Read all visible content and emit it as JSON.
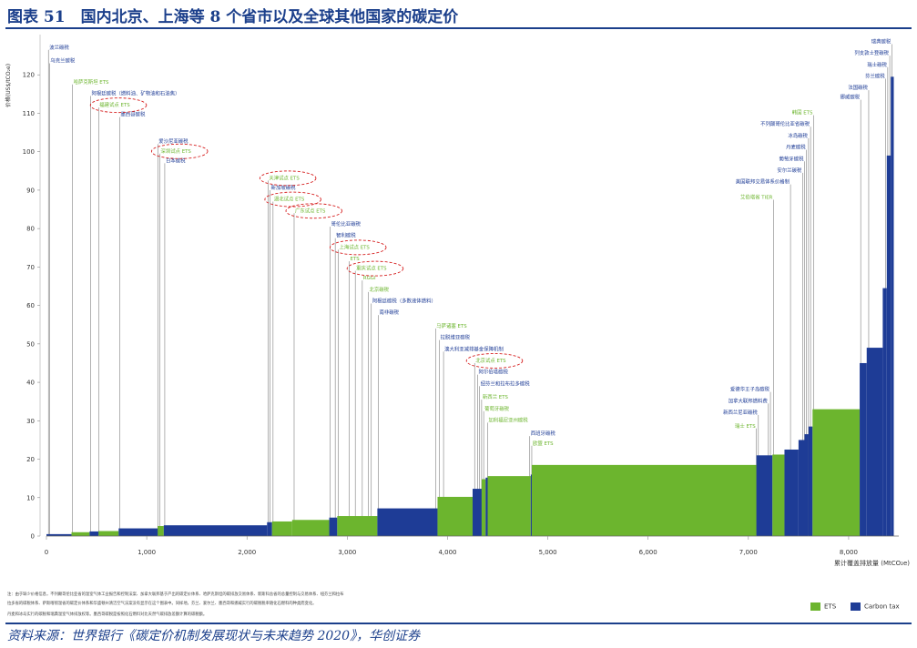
{
  "header": {
    "title": "图表 51　国内北京、上海等 8 个省市以及全球其他国家的碳定价"
  },
  "footer": {
    "notes": [
      "注：由于缺少价格信息，不列颠哥伦比亚省的温室气体工业报告和控制法案、加拿大联邦基于产出的碳定价体系、哈萨克斯坦的碳排放交易体系、新斯科舍省的总量控制与交易体系、纽芬兰和拉布",
      "拉多省的碳税体系、萨斯喀彻温省的碳定价体系和华盛顿州清洁空气法案没有显示在这个图表中。同样地，芬兰、爱尔兰、墨西哥和挪威实行的碳税税率随化石燃料的种类而变化。",
      "丹麦和冰岛实行的碳税和瑞典温室气体排放权等。墨西哥碳税是按照化石燃料对比天然气碳排放差额计算的碳税额。"
    ],
    "source": "资料来源：世界银行《碳定价机制发展现状与未来趋势 2020》，华创证券"
  },
  "legend": {
    "ets_label": "ETS",
    "tax_label": "Carbon tax"
  },
  "chart_data": {
    "type": "bar",
    "description_type": "step-width cumulative bar chart (merit-order style)",
    "ylabel": "价格(US$/tCO₂e)",
    "xlabel": "累计覆盖排放量 (MtCO₂e)",
    "xlim": [
      0,
      8500
    ],
    "ylim": [
      0,
      130
    ],
    "x_ticks": [
      0,
      1000,
      2000,
      3000,
      4000,
      5000,
      6000,
      7000,
      8000
    ],
    "x_tick_labels": [
      "0",
      "1,000",
      "2,000",
      "3,000",
      "4,000",
      "5,000",
      "6,000",
      "7,000",
      "8,000"
    ],
    "y_ticks": [
      0,
      10,
      20,
      30,
      40,
      50,
      60,
      70,
      80,
      90,
      100,
      110,
      120
    ],
    "grid": false,
    "legend_position": "bottom-right",
    "colors": {
      "ets": "#6cb52e",
      "tax": "#1e3c96",
      "label_tax": "#1e3c96",
      "label_ets": "#6cb52e",
      "circle": "#d62020",
      "leader": "#555555"
    },
    "bars": [
      {
        "x0": 0,
        "x1": 250,
        "y": 0.5,
        "kind": "tax"
      },
      {
        "x0": 250,
        "x1": 430,
        "y": 1,
        "kind": "ets"
      },
      {
        "x0": 430,
        "x1": 520,
        "y": 1.2,
        "kind": "tax"
      },
      {
        "x0": 520,
        "x1": 720,
        "y": 1.3,
        "kind": "ets"
      },
      {
        "x0": 720,
        "x1": 1110,
        "y": 2,
        "kind": "tax"
      },
      {
        "x0": 1110,
        "x1": 1170,
        "y": 2.6,
        "kind": "ets"
      },
      {
        "x0": 1170,
        "x1": 2200,
        "y": 2.8,
        "kind": "tax"
      },
      {
        "x0": 2200,
        "x1": 2250,
        "y": 3.6,
        "kind": "tax"
      },
      {
        "x0": 2250,
        "x1": 2450,
        "y": 3.8,
        "kind": "ets"
      },
      {
        "x0": 2450,
        "x1": 2820,
        "y": 4.2,
        "kind": "ets"
      },
      {
        "x0": 2820,
        "x1": 2900,
        "y": 4.8,
        "kind": "tax"
      },
      {
        "x0": 2900,
        "x1": 3300,
        "y": 5.2,
        "kind": "ets"
      },
      {
        "x0": 3300,
        "x1": 3900,
        "y": 7.2,
        "kind": "tax"
      },
      {
        "x0": 3900,
        "x1": 4250,
        "y": 10.2,
        "kind": "ets"
      },
      {
        "x0": 4250,
        "x1": 4340,
        "y": 12.3,
        "kind": "tax"
      },
      {
        "x0": 4340,
        "x1": 4380,
        "y": 14.8,
        "kind": "ets"
      },
      {
        "x0": 4380,
        "x1": 4400,
        "y": 15.2,
        "kind": "tax"
      },
      {
        "x0": 4400,
        "x1": 4830,
        "y": 15.6,
        "kind": "ets"
      },
      {
        "x0": 4830,
        "x1": 4840,
        "y": 16,
        "kind": "tax"
      },
      {
        "x0": 4840,
        "x1": 7080,
        "y": 18.5,
        "kind": "ets"
      },
      {
        "x0": 7080,
        "x1": 7240,
        "y": 21,
        "kind": "tax"
      },
      {
        "x0": 7240,
        "x1": 7360,
        "y": 21.2,
        "kind": "ets"
      },
      {
        "x0": 7360,
        "x1": 7500,
        "y": 22.5,
        "kind": "tax"
      },
      {
        "x0": 7500,
        "x1": 7560,
        "y": 25,
        "kind": "tax"
      },
      {
        "x0": 7560,
        "x1": 7600,
        "y": 26.5,
        "kind": "tax"
      },
      {
        "x0": 7600,
        "x1": 7640,
        "y": 28.5,
        "kind": "tax"
      },
      {
        "x0": 7640,
        "x1": 8110,
        "y": 33,
        "kind": "ets"
      },
      {
        "x0": 8110,
        "x1": 8180,
        "y": 45,
        "kind": "tax"
      },
      {
        "x0": 8180,
        "x1": 8340,
        "y": 49,
        "kind": "tax"
      },
      {
        "x0": 8340,
        "x1": 8380,
        "y": 64.5,
        "kind": "tax"
      },
      {
        "x0": 8380,
        "x1": 8420,
        "y": 99,
        "kind": "tax"
      },
      {
        "x0": 8420,
        "x1": 8450,
        "y": 119.5,
        "kind": "tax"
      }
    ],
    "annotations": [
      {
        "text": "波兰碳税",
        "y": 126.5,
        "x_line": 20,
        "side": "right",
        "kind": "tax"
      },
      {
        "text": "乌克兰碳税",
        "y": 123,
        "x_line": 30,
        "side": "right",
        "kind": "tax"
      },
      {
        "text": "哈萨克斯坦 ETS",
        "y": 117.5,
        "x_line": 260,
        "side": "right",
        "kind": "ets"
      },
      {
        "text": "阿根廷碳税（燃料油、矿物油和石油焦）",
        "y": 114.5,
        "x_line": 440,
        "side": "right",
        "kind": "tax"
      },
      {
        "text": "福建试点 ETS",
        "y": 111.5,
        "x_line": 520,
        "side": "right",
        "kind": "ets",
        "circled": true
      },
      {
        "text": "墨西哥碳税",
        "y": 109,
        "x_line": 730,
        "side": "right",
        "kind": "tax"
      },
      {
        "text": "爱沙尼亚碳税",
        "y": 102,
        "x_line": 1110,
        "side": "right",
        "kind": "tax"
      },
      {
        "text": "深圳试点 ETS",
        "y": 99.5,
        "x_line": 1130,
        "side": "right",
        "kind": "ets",
        "circled": true
      },
      {
        "text": "日本碳税",
        "y": 97,
        "x_line": 1180,
        "side": "right",
        "kind": "tax"
      },
      {
        "text": "天津试点 ETS",
        "y": 92.5,
        "x_line": 2210,
        "side": "right",
        "kind": "ets",
        "circled": true
      },
      {
        "text": "新加坡碳税",
        "y": 90,
        "x_line": 2230,
        "side": "right",
        "kind": "tax"
      },
      {
        "text": "湖北试点 ETS",
        "y": 87,
        "x_line": 2260,
        "side": "right",
        "kind": "ets",
        "circled": true
      },
      {
        "text": "广东试点 ETS",
        "y": 84,
        "x_line": 2470,
        "side": "right",
        "kind": "ets",
        "circled": true
      },
      {
        "text": "哥伦比亚碳税",
        "y": 80.5,
        "x_line": 2830,
        "side": "right",
        "kind": "tax"
      },
      {
        "text": "智利碳税",
        "y": 77.5,
        "x_line": 2880,
        "side": "right",
        "kind": "tax"
      },
      {
        "text": "上海试点 ETS",
        "y": 74.5,
        "x_line": 2910,
        "side": "right",
        "kind": "ets",
        "circled": true
      },
      {
        "text": "ETS",
        "y": 71.5,
        "x_line": 3020,
        "side": "right",
        "kind": "ets"
      },
      {
        "text": "重庆试点 ETS",
        "y": 69,
        "x_line": 3080,
        "side": "right",
        "kind": "ets",
        "circled": true
      },
      {
        "text": "RGGI",
        "y": 66.5,
        "x_line": 3150,
        "side": "right",
        "kind": "ets"
      },
      {
        "text": "北京碳税",
        "y": 63.5,
        "x_line": 3210,
        "side": "right",
        "kind": "ets"
      },
      {
        "text": "阿根廷碳税（多数液体燃料）",
        "y": 60.5,
        "x_line": 3240,
        "side": "right",
        "kind": "tax"
      },
      {
        "text": "南非碳税",
        "y": 57.5,
        "x_line": 3310,
        "side": "right",
        "kind": "tax"
      },
      {
        "text": "马萨诸塞 ETS",
        "y": 54,
        "x_line": 3880,
        "side": "right",
        "kind": "ets"
      },
      {
        "text": "拉脱维亚碳税",
        "y": 51,
        "x_line": 3920,
        "side": "right",
        "kind": "tax"
      },
      {
        "text": "澳大利亚减排基金保障机制",
        "y": 48,
        "x_line": 3960,
        "side": "right",
        "kind": "tax"
      },
      {
        "text": "北京试点 ETS",
        "y": 45,
        "x_line": 4270,
        "side": "right",
        "kind": "ets",
        "circled": true
      },
      {
        "text": "阿尔伯塔碳税",
        "y": 42,
        "x_line": 4300,
        "side": "right",
        "kind": "tax"
      },
      {
        "text": "纽芬兰和拉布拉多碳税",
        "y": 39,
        "x_line": 4320,
        "side": "right",
        "kind": "tax"
      },
      {
        "text": "新西兰 ETS",
        "y": 35.5,
        "x_line": 4340,
        "side": "right",
        "kind": "ets"
      },
      {
        "text": "葡萄牙碳税",
        "y": 32.5,
        "x_line": 4360,
        "side": "right",
        "kind": "ets"
      },
      {
        "text": "加利福尼亚州碳税",
        "y": 29.5,
        "x_line": 4400,
        "side": "right",
        "kind": "ets"
      },
      {
        "text": "西班牙碳税",
        "y": 26,
        "x_line": 4820,
        "side": "right",
        "kind": "tax"
      },
      {
        "text": "欧盟 ETS",
        "y": 23.5,
        "x_line": 4840,
        "side": "right",
        "kind": "ets"
      },
      {
        "text": "瑞典碳税",
        "y": 128,
        "x_line": 8430,
        "side": "left",
        "kind": "tax"
      },
      {
        "text": "列支敦士登碳税",
        "y": 125,
        "x_line": 8410,
        "side": "left",
        "kind": "tax"
      },
      {
        "text": "瑞士碳税",
        "y": 122,
        "x_line": 8390,
        "side": "left",
        "kind": "tax"
      },
      {
        "text": "芬兰碳税",
        "y": 119,
        "x_line": 8370,
        "side": "left",
        "kind": "tax"
      },
      {
        "text": "法国碳税",
        "y": 116,
        "x_line": 8200,
        "side": "left",
        "kind": "tax"
      },
      {
        "text": "挪威碳税",
        "y": 113.5,
        "x_line": 8120,
        "side": "left",
        "kind": "tax"
      },
      {
        "text": "韩国 ETS",
        "y": 109.5,
        "x_line": 7650,
        "side": "left",
        "kind": "ets"
      },
      {
        "text": "不列颠哥伦比亚省碳税",
        "y": 106.5,
        "x_line": 7620,
        "side": "left",
        "kind": "tax"
      },
      {
        "text": "冰岛碳税",
        "y": 103.5,
        "x_line": 7600,
        "side": "left",
        "kind": "tax"
      },
      {
        "text": "丹麦碳税",
        "y": 100.5,
        "x_line": 7580,
        "side": "left",
        "kind": "tax"
      },
      {
        "text": "葡萄牙碳税",
        "y": 97.5,
        "x_line": 7560,
        "side": "left",
        "kind": "tax"
      },
      {
        "text": "安尔兰碳税",
        "y": 94.5,
        "x_line": 7540,
        "side": "left",
        "kind": "tax"
      },
      {
        "text": "美国联邦交易体系价格制",
        "y": 91.5,
        "x_line": 7420,
        "side": "left",
        "kind": "tax"
      },
      {
        "text": "艾伯塔省 TIER",
        "y": 87.5,
        "x_line": 7250,
        "side": "left",
        "kind": "ets"
      },
      {
        "text": "爱德华王子岛碳税",
        "y": 37.5,
        "x_line": 7220,
        "side": "left",
        "kind": "tax"
      },
      {
        "text": "加拿大联邦燃料费",
        "y": 34.5,
        "x_line": 7200,
        "side": "left",
        "kind": "tax"
      },
      {
        "text": "新西兰尼亚碳税",
        "y": 31.5,
        "x_line": 7100,
        "side": "left",
        "kind": "tax"
      },
      {
        "text": "瑞士 ETS",
        "y": 28,
        "x_line": 7080,
        "side": "left",
        "kind": "ets"
      }
    ]
  }
}
